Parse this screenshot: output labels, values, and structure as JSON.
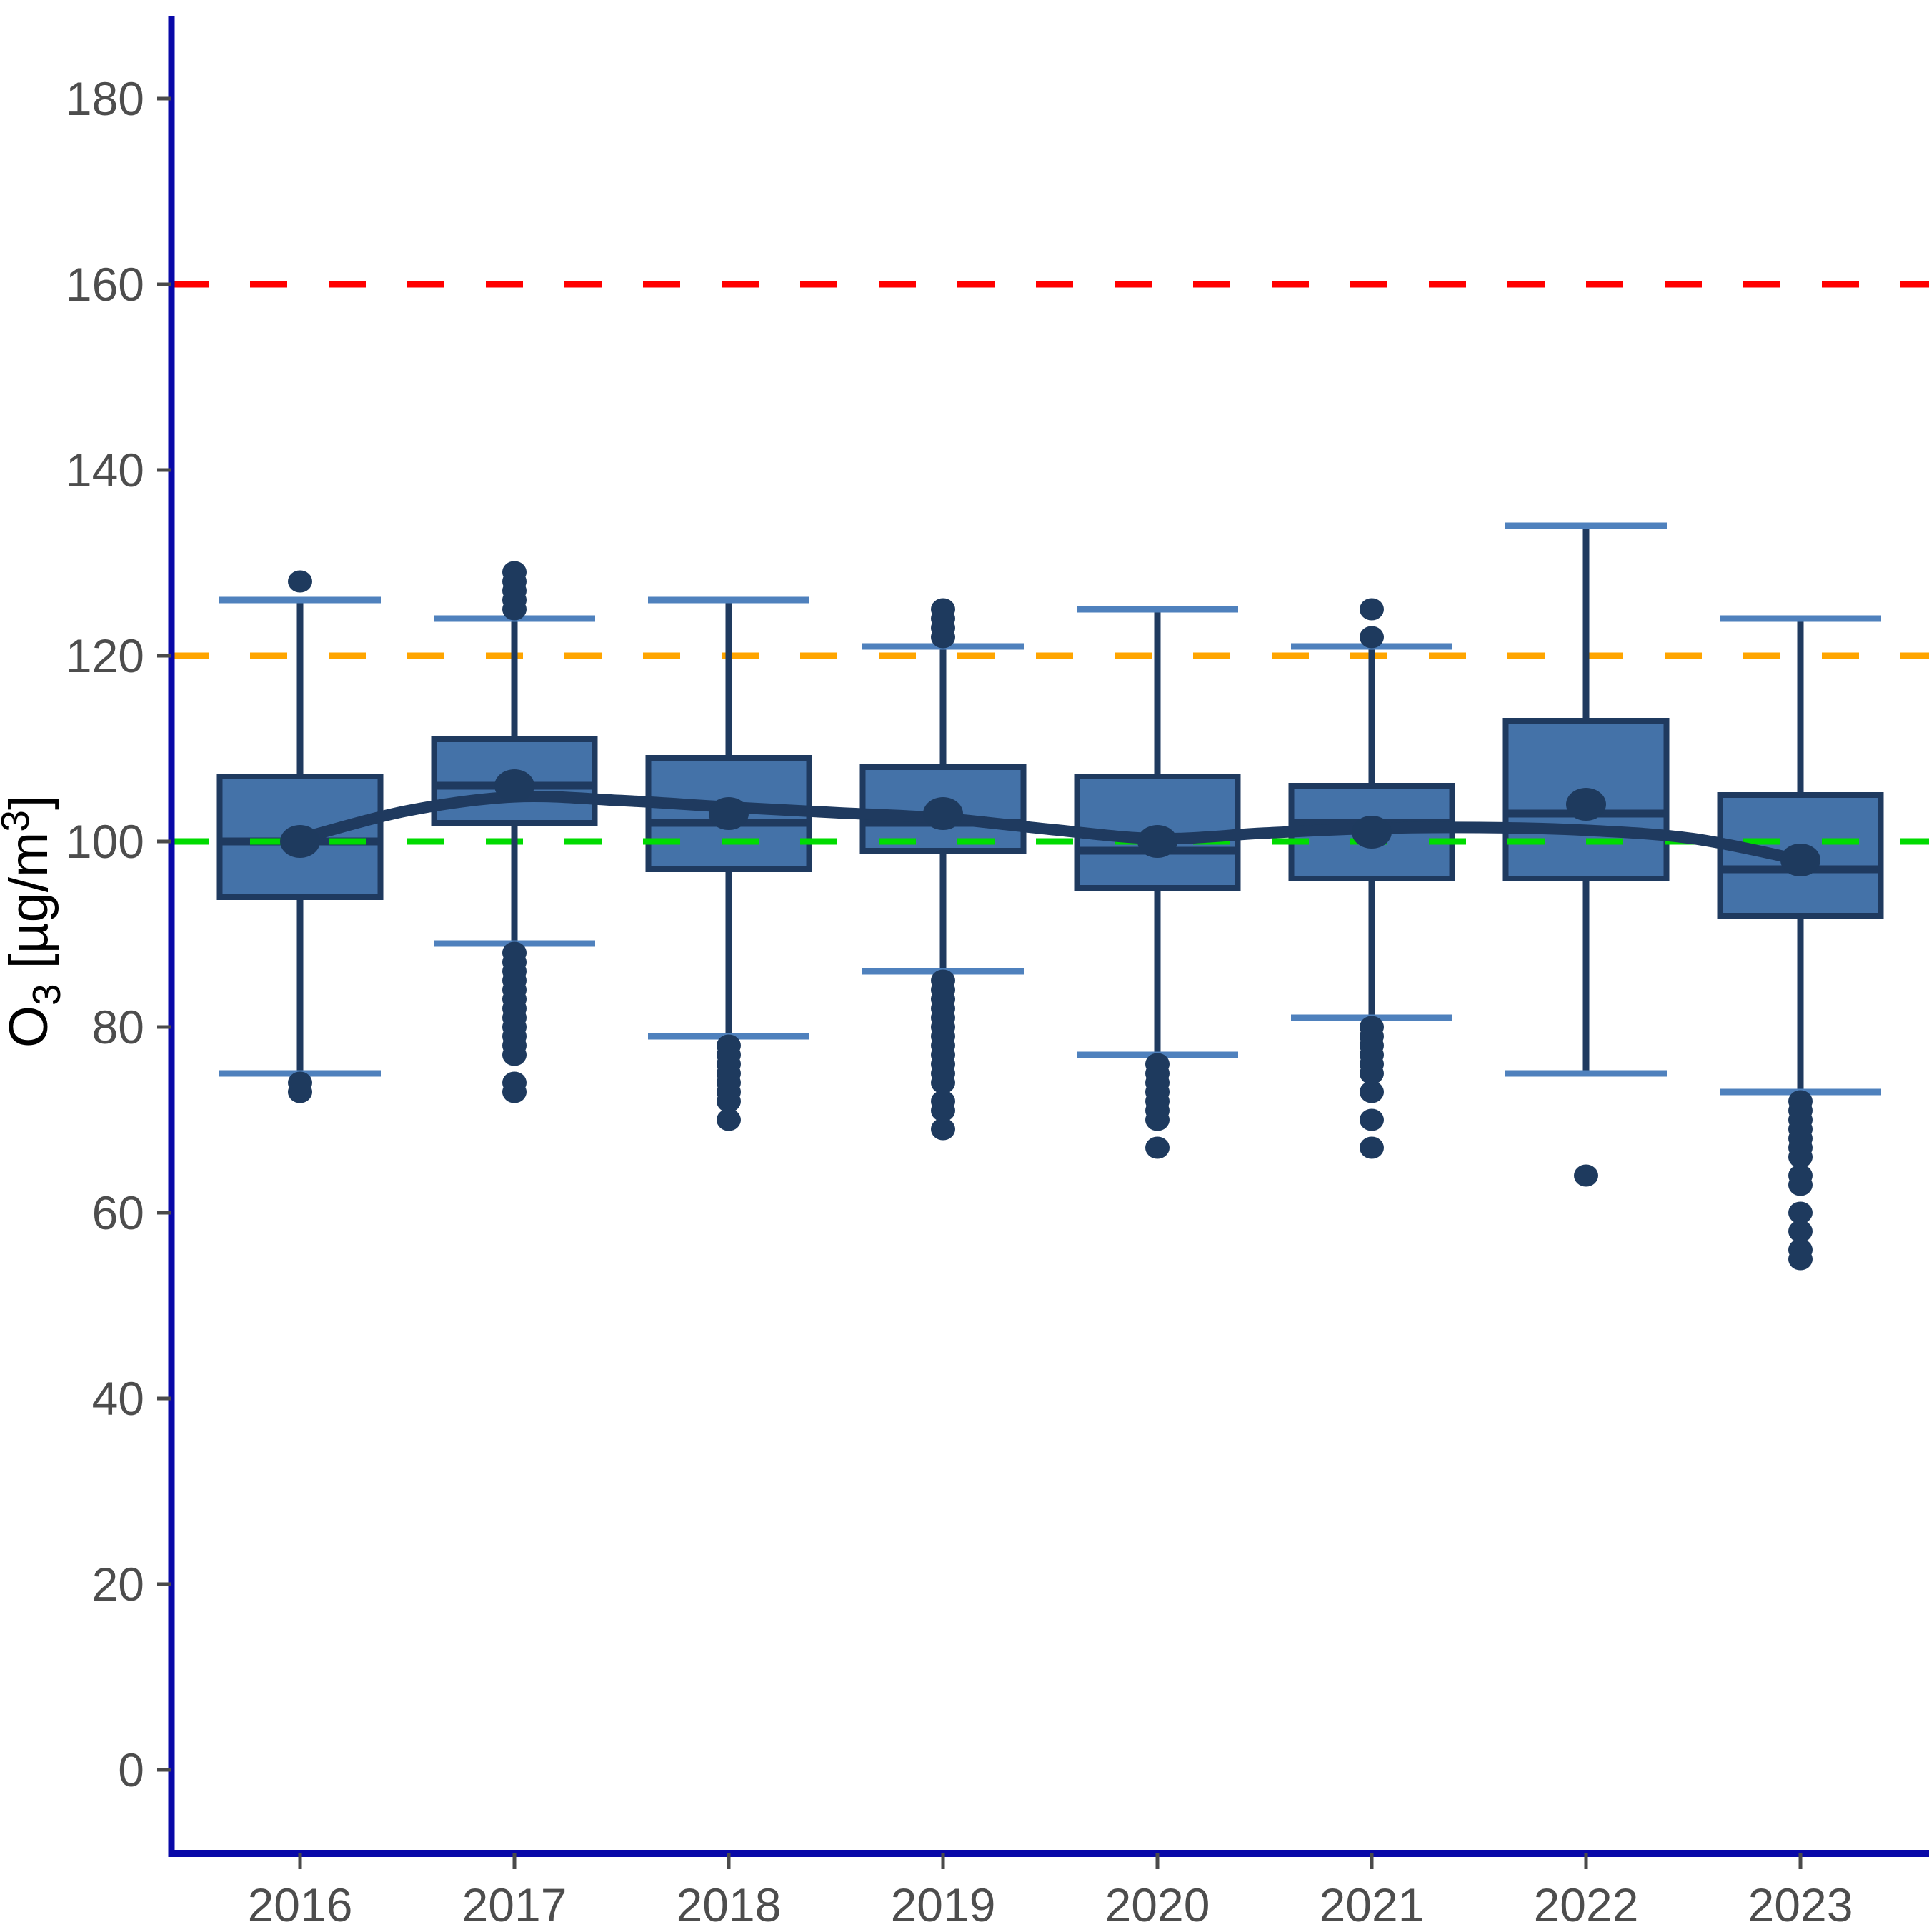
{
  "chart_data": {
    "type": "boxplot",
    "title": "",
    "xlabel": "",
    "ylabel_parts": {
      "pre": "O",
      "sub": "3",
      "mid": " [µg/m",
      "sup": "3",
      "post": "]"
    },
    "y_ticks": [
      0,
      20,
      40,
      60,
      80,
      100,
      120,
      140,
      160,
      180
    ],
    "ylim": [
      -10,
      190
    ],
    "x_categories": [
      "2016",
      "2017",
      "2018",
      "2019",
      "2020",
      "2021",
      "2022",
      "2023"
    ],
    "grid": false,
    "legend": "none",
    "reference_lines": [
      {
        "name": "limit-160",
        "value": 160,
        "color": "#FF0000"
      },
      {
        "name": "limit-120",
        "value": 120,
        "color": "#FFA500"
      },
      {
        "name": "limit-100",
        "value": 100,
        "color": "#00DB00"
      }
    ],
    "series": [
      {
        "year": "2016",
        "whisker_low": 75,
        "q1": 94,
        "median": 100,
        "q3": 107,
        "whisker_high": 126,
        "mean": 100,
        "outliers_high": [
          128
        ],
        "outliers_low": [
          74,
          73
        ]
      },
      {
        "year": "2017",
        "whisker_low": 89,
        "q1": 102,
        "median": 106,
        "q3": 111,
        "whisker_high": 124,
        "mean": 106,
        "outliers_high": [
          125,
          126,
          127,
          128,
          129
        ],
        "outliers_low": [
          88,
          87,
          86,
          85,
          84,
          83,
          82,
          81,
          80,
          79,
          78,
          77,
          74,
          73
        ]
      },
      {
        "year": "2018",
        "whisker_low": 79,
        "q1": 97,
        "median": 102,
        "q3": 109,
        "whisker_high": 126,
        "mean": 103,
        "outliers_high": [],
        "outliers_low": [
          78,
          77,
          76,
          75,
          74,
          73,
          72,
          70
        ]
      },
      {
        "year": "2019",
        "whisker_low": 86,
        "q1": 99,
        "median": 102,
        "q3": 108,
        "whisker_high": 121,
        "mean": 103,
        "outliers_high": [
          122,
          123,
          124,
          125
        ],
        "outliers_low": [
          85,
          84,
          83,
          82,
          81,
          80,
          79,
          78,
          77,
          76,
          75,
          74,
          72,
          71,
          69
        ]
      },
      {
        "year": "2020",
        "whisker_low": 77,
        "q1": 95,
        "median": 99,
        "q3": 107,
        "whisker_high": 125,
        "mean": 100,
        "outliers_high": [],
        "outliers_low": [
          76,
          75,
          74,
          73,
          72,
          71,
          70,
          67
        ]
      },
      {
        "year": "2021",
        "whisker_low": 81,
        "q1": 96,
        "median": 102,
        "q3": 106,
        "whisker_high": 121,
        "mean": 101,
        "outliers_high": [
          122,
          125
        ],
        "outliers_low": [
          80,
          79,
          78,
          77,
          76,
          75,
          73,
          70,
          67
        ]
      },
      {
        "year": "2022",
        "whisker_low": 75,
        "q1": 96,
        "median": 103,
        "q3": 113,
        "whisker_high": 134,
        "mean": 104,
        "outliers_high": [],
        "outliers_low": [
          64
        ]
      },
      {
        "year": "2023",
        "whisker_low": 73,
        "q1": 92,
        "median": 97,
        "q3": 105,
        "whisker_high": 124,
        "mean": 98,
        "outliers_high": [],
        "outliers_low": [
          72,
          71,
          70,
          69,
          68,
          67,
          66,
          64,
          63,
          60,
          58,
          56,
          55
        ]
      }
    ],
    "trend_line": {
      "name": "smoothed-mean-trend",
      "points": [
        {
          "year": 2016.0,
          "value": 100.3
        },
        {
          "year": 2016.5,
          "value": 103.3
        },
        {
          "year": 2017.0,
          "value": 104.8
        },
        {
          "year": 2017.5,
          "value": 104.4
        },
        {
          "year": 2018.0,
          "value": 103.7
        },
        {
          "year": 2018.5,
          "value": 103.1
        },
        {
          "year": 2019.0,
          "value": 102.5
        },
        {
          "year": 2019.5,
          "value": 101.3
        },
        {
          "year": 2020.0,
          "value": 100.3
        },
        {
          "year": 2020.5,
          "value": 100.9
        },
        {
          "year": 2021.0,
          "value": 101.4
        },
        {
          "year": 2021.5,
          "value": 101.5
        },
        {
          "year": 2022.0,
          "value": 101.2
        },
        {
          "year": 2022.5,
          "value": 100.3
        },
        {
          "year": 2023.0,
          "value": 98.0
        }
      ]
    },
    "colors": {
      "box_fill": "#4472A8",
      "box_stroke": "#1F3A5F",
      "whisker": "#1F3A5F",
      "cap": "#4F81BD",
      "outlier": "#1E3A5E",
      "mean_dot": "#1E3A5E",
      "trend": "#1F3A5F",
      "axis": "#0909A8",
      "tick_text": "#4D4D4D",
      "ylabel_text": "#000000"
    }
  }
}
